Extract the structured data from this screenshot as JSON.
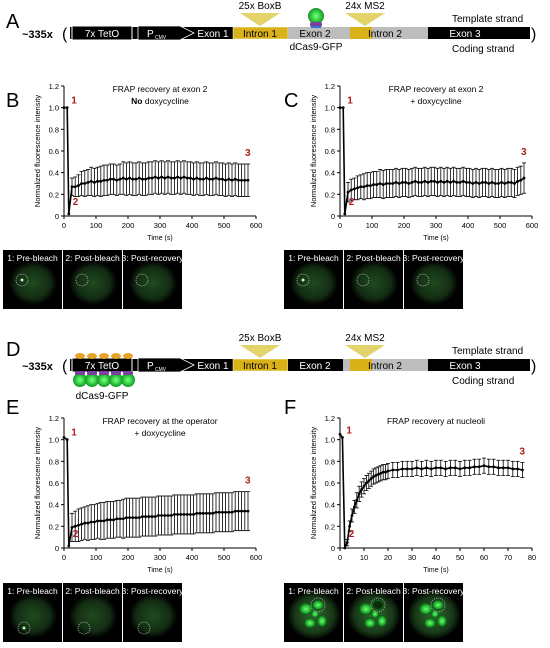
{
  "panel_letters": [
    "A",
    "B",
    "C",
    "D",
    "E",
    "F"
  ],
  "constructs": [
    {
      "prefix": "~335x",
      "tet": "7x TetO",
      "pcmv": "P",
      "pcmv_sub": "CMV",
      "exon1": "Exon 1",
      "intron1": "Intron 1",
      "exon2": "Exon 2",
      "intron2": "Intron 2",
      "exon3": "Exon 3",
      "boxb": "25x BoxB",
      "ms2": "24x MS2",
      "template": "Template strand",
      "coding": "Coding strand",
      "dcas_label": "dCas9-GFP",
      "dcas_position": "exon 2"
    },
    {
      "prefix": "~335x",
      "tet": "7x TetO",
      "pcmv": "P",
      "pcmv_sub": "CMV",
      "exon1": "Exon 1",
      "intron1": "Intron 1",
      "exon2": "Exon 2",
      "intron2": "Intron 2",
      "exon3": "Exon 3",
      "boxb": "25x BoxB",
      "ms2": "24x MS2",
      "template": "Template strand",
      "coding": "Coding strand",
      "dcas_label": "dCas9-GFP",
      "dcas_position": "operator"
    }
  ],
  "image_labels": [
    "1: Pre-bleach",
    "2: Post-bleach",
    "3: Post-recovery"
  ],
  "chart_data": [
    {
      "type": "line",
      "panel": "B",
      "title": "FRAP recovery at exon 2",
      "subtitle_bold": "No",
      "subtitle_rest": " doxycycline",
      "xlabel": "Time (s)",
      "ylabel": "Normalized fluorescence intensity",
      "xlim": [
        0,
        600
      ],
      "ylim": [
        0,
        1.2
      ],
      "xticks": [
        "0",
        "100",
        "200",
        "300",
        "400",
        "500",
        "600"
      ],
      "yticks": [
        "0",
        "0.2",
        "0.4",
        "0.6",
        "0.8",
        "1.0",
        "1.2"
      ],
      "markers": [
        "1",
        "2",
        "3"
      ],
      "x": [
        0,
        10,
        15,
        25,
        35,
        45,
        55,
        65,
        75,
        85,
        95,
        105,
        115,
        125,
        135,
        145,
        155,
        165,
        175,
        185,
        195,
        205,
        215,
        225,
        235,
        245,
        255,
        265,
        275,
        285,
        295,
        305,
        315,
        325,
        335,
        345,
        355,
        365,
        375,
        385,
        395,
        405,
        415,
        425,
        435,
        445,
        455,
        465,
        475,
        485,
        495,
        505,
        515,
        525,
        535,
        545,
        555,
        565,
        575
      ],
      "y": [
        1.0,
        1.0,
        0.02,
        0.27,
        0.27,
        0.28,
        0.3,
        0.3,
        0.31,
        0.32,
        0.31,
        0.32,
        0.32,
        0.33,
        0.33,
        0.34,
        0.34,
        0.33,
        0.34,
        0.35,
        0.34,
        0.35,
        0.34,
        0.34,
        0.35,
        0.34,
        0.34,
        0.35,
        0.35,
        0.36,
        0.35,
        0.36,
        0.35,
        0.36,
        0.35,
        0.35,
        0.36,
        0.35,
        0.36,
        0.35,
        0.35,
        0.34,
        0.35,
        0.34,
        0.34,
        0.35,
        0.34,
        0.34,
        0.35,
        0.34,
        0.34,
        0.33,
        0.34,
        0.33,
        0.34,
        0.33,
        0.33,
        0.33,
        0.33
      ],
      "error": [
        0,
        0,
        0,
        0.08,
        0.09,
        0.1,
        0.11,
        0.12,
        0.12,
        0.13,
        0.13,
        0.13,
        0.14,
        0.14,
        0.14,
        0.14,
        0.14,
        0.14,
        0.14,
        0.15,
        0.15,
        0.15,
        0.15,
        0.15,
        0.15,
        0.15,
        0.15,
        0.15,
        0.15,
        0.15,
        0.15,
        0.15,
        0.15,
        0.15,
        0.15,
        0.15,
        0.15,
        0.15,
        0.15,
        0.15,
        0.15,
        0.15,
        0.15,
        0.15,
        0.15,
        0.15,
        0.15,
        0.15,
        0.15,
        0.15,
        0.15,
        0.15,
        0.15,
        0.15,
        0.15,
        0.15,
        0.15,
        0.15,
        0.15
      ]
    },
    {
      "type": "line",
      "panel": "C",
      "title": "FRAP recovery at exon 2",
      "subtitle_bold": "",
      "subtitle_rest": "+ doxycycline",
      "xlabel": "Time (s)",
      "ylabel": "Normalized fluorescence intensity",
      "xlim": [
        0,
        600
      ],
      "ylim": [
        0,
        1.2
      ],
      "xticks": [
        "0",
        "100",
        "200",
        "300",
        "400",
        "500",
        "600"
      ],
      "yticks": [
        "0",
        "0.2",
        "0.4",
        "0.6",
        "0.8",
        "1.0",
        "1.2"
      ],
      "markers": [
        "1",
        "2",
        "3"
      ],
      "x": [
        0,
        10,
        15,
        25,
        35,
        45,
        55,
        65,
        75,
        85,
        95,
        105,
        115,
        125,
        135,
        145,
        155,
        165,
        175,
        185,
        195,
        205,
        215,
        225,
        235,
        245,
        255,
        265,
        275,
        285,
        295,
        305,
        315,
        325,
        335,
        345,
        355,
        365,
        375,
        385,
        395,
        405,
        415,
        425,
        435,
        445,
        455,
        465,
        475,
        485,
        495,
        505,
        515,
        525,
        535,
        545,
        555,
        565,
        575
      ],
      "y": [
        1.0,
        1.0,
        0.02,
        0.22,
        0.24,
        0.25,
        0.26,
        0.27,
        0.27,
        0.28,
        0.28,
        0.29,
        0.29,
        0.3,
        0.29,
        0.3,
        0.3,
        0.3,
        0.31,
        0.3,
        0.31,
        0.31,
        0.3,
        0.31,
        0.32,
        0.31,
        0.31,
        0.32,
        0.31,
        0.32,
        0.32,
        0.31,
        0.32,
        0.31,
        0.32,
        0.31,
        0.32,
        0.31,
        0.31,
        0.32,
        0.31,
        0.31,
        0.3,
        0.31,
        0.3,
        0.31,
        0.31,
        0.3,
        0.31,
        0.3,
        0.3,
        0.31,
        0.3,
        0.31,
        0.31,
        0.3,
        0.32,
        0.33,
        0.35
      ],
      "error": [
        0,
        0,
        0,
        0.09,
        0.1,
        0.1,
        0.11,
        0.11,
        0.12,
        0.12,
        0.12,
        0.12,
        0.12,
        0.13,
        0.13,
        0.13,
        0.13,
        0.13,
        0.13,
        0.13,
        0.13,
        0.13,
        0.13,
        0.13,
        0.13,
        0.13,
        0.13,
        0.13,
        0.13,
        0.13,
        0.13,
        0.13,
        0.13,
        0.13,
        0.13,
        0.13,
        0.13,
        0.13,
        0.13,
        0.13,
        0.13,
        0.13,
        0.13,
        0.13,
        0.13,
        0.13,
        0.13,
        0.13,
        0.13,
        0.13,
        0.13,
        0.13,
        0.13,
        0.13,
        0.13,
        0.13,
        0.13,
        0.13,
        0.14
      ]
    },
    {
      "type": "line",
      "panel": "E",
      "title": "FRAP recovery at the operator",
      "subtitle_bold": "",
      "subtitle_rest": "+ doxycycline",
      "xlabel": "Time (s)",
      "ylabel": "Normalized fluorescence intensity",
      "xlim": [
        0,
        600
      ],
      "ylim": [
        0,
        1.2
      ],
      "xticks": [
        "0",
        "100",
        "200",
        "300",
        "400",
        "500",
        "600"
      ],
      "yticks": [
        "0",
        "0.2",
        "0.4",
        "0.6",
        "0.8",
        "1.0",
        "1.2"
      ],
      "markers": [
        "1",
        "2",
        "3"
      ],
      "x": [
        0,
        10,
        15,
        25,
        35,
        45,
        55,
        65,
        75,
        85,
        95,
        105,
        115,
        125,
        135,
        145,
        155,
        165,
        175,
        185,
        195,
        205,
        215,
        225,
        235,
        245,
        255,
        265,
        275,
        285,
        295,
        305,
        315,
        325,
        335,
        345,
        355,
        365,
        375,
        385,
        395,
        405,
        415,
        425,
        435,
        445,
        455,
        465,
        475,
        485,
        495,
        505,
        515,
        525,
        535,
        545,
        555,
        565,
        575
      ],
      "y": [
        1.02,
        1.0,
        0.02,
        0.19,
        0.2,
        0.21,
        0.22,
        0.23,
        0.23,
        0.24,
        0.24,
        0.25,
        0.25,
        0.25,
        0.26,
        0.26,
        0.26,
        0.27,
        0.27,
        0.27,
        0.28,
        0.28,
        0.28,
        0.28,
        0.28,
        0.29,
        0.29,
        0.29,
        0.29,
        0.29,
        0.3,
        0.3,
        0.3,
        0.3,
        0.3,
        0.31,
        0.31,
        0.31,
        0.31,
        0.31,
        0.31,
        0.31,
        0.32,
        0.32,
        0.32,
        0.32,
        0.32,
        0.32,
        0.33,
        0.33,
        0.33,
        0.33,
        0.33,
        0.33,
        0.34,
        0.34,
        0.34,
        0.34,
        0.34
      ],
      "error": [
        0,
        0,
        0,
        0.13,
        0.14,
        0.15,
        0.15,
        0.15,
        0.16,
        0.16,
        0.16,
        0.16,
        0.17,
        0.17,
        0.17,
        0.17,
        0.17,
        0.17,
        0.17,
        0.18,
        0.18,
        0.18,
        0.18,
        0.18,
        0.18,
        0.18,
        0.18,
        0.18,
        0.18,
        0.18,
        0.18,
        0.18,
        0.18,
        0.18,
        0.18,
        0.18,
        0.18,
        0.18,
        0.18,
        0.18,
        0.18,
        0.18,
        0.18,
        0.18,
        0.18,
        0.18,
        0.18,
        0.18,
        0.18,
        0.18,
        0.18,
        0.18,
        0.18,
        0.18,
        0.18,
        0.18,
        0.18,
        0.18,
        0.18
      ]
    },
    {
      "type": "line",
      "panel": "F",
      "title": "FRAP recovery at nucleoli",
      "subtitle_bold": "",
      "subtitle_rest": "",
      "xlabel": "Time (s)",
      "ylabel": "Normalized fluorescence intensity",
      "xlim": [
        0,
        80
      ],
      "ylim": [
        0,
        1.2
      ],
      "xticks": [
        "0",
        "10",
        "20",
        "30",
        "40",
        "50",
        "60",
        "70",
        "80"
      ],
      "yticks": [
        "0",
        "0.2",
        "0.4",
        "0.6",
        "0.8",
        "1.0",
        "1.2"
      ],
      "markers": [
        "1",
        "2",
        "3"
      ],
      "x": [
        0,
        1,
        2,
        3,
        4,
        5,
        6,
        7,
        8,
        9,
        10,
        11,
        12,
        13,
        14,
        15,
        16,
        17,
        18,
        19,
        20,
        22,
        24,
        26,
        28,
        30,
        32,
        34,
        36,
        38,
        40,
        42,
        44,
        46,
        48,
        50,
        52,
        54,
        56,
        58,
        60,
        62,
        64,
        66,
        68,
        70,
        72,
        74,
        76
      ],
      "y": [
        1.05,
        1.02,
        0.0,
        0.05,
        0.2,
        0.3,
        0.38,
        0.44,
        0.5,
        0.54,
        0.57,
        0.6,
        0.62,
        0.64,
        0.66,
        0.67,
        0.68,
        0.69,
        0.7,
        0.7,
        0.71,
        0.72,
        0.72,
        0.73,
        0.73,
        0.73,
        0.74,
        0.73,
        0.74,
        0.73,
        0.74,
        0.74,
        0.73,
        0.74,
        0.74,
        0.73,
        0.74,
        0.74,
        0.75,
        0.75,
        0.76,
        0.75,
        0.75,
        0.74,
        0.74,
        0.74,
        0.73,
        0.73,
        0.72
      ],
      "error": [
        0,
        0,
        0,
        0.03,
        0.05,
        0.06,
        0.06,
        0.07,
        0.07,
        0.07,
        0.07,
        0.07,
        0.07,
        0.07,
        0.07,
        0.07,
        0.07,
        0.07,
        0.07,
        0.07,
        0.07,
        0.07,
        0.07,
        0.07,
        0.07,
        0.07,
        0.07,
        0.07,
        0.07,
        0.07,
        0.07,
        0.07,
        0.07,
        0.07,
        0.07,
        0.07,
        0.07,
        0.07,
        0.07,
        0.07,
        0.07,
        0.07,
        0.07,
        0.07,
        0.07,
        0.07,
        0.07,
        0.07,
        0.07
      ]
    }
  ],
  "colors": {
    "marker_red": "#b01c1c",
    "exon_gray": "#bdbdbd",
    "intron_gold": "#d9b21a",
    "intron_light": "#bfbfbf",
    "gfp": "#2ecc40",
    "cas_purple": "#7b3fa0",
    "cas_orange": "#e8a32b"
  }
}
